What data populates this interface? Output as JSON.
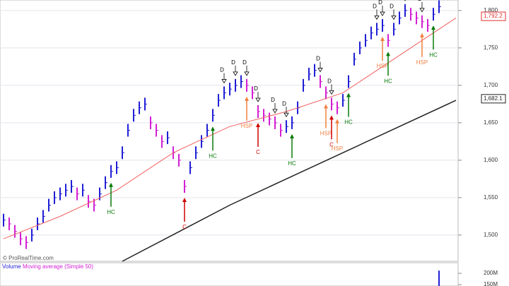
{
  "chart_data": {
    "type": "bar-chart",
    "watermark": "© ProRealTime.com",
    "xlim": [
      0,
      80
    ],
    "ylim": [
      1465,
      1814
    ],
    "yticks": [
      {
        "value": 1500,
        "label": "1,500"
      },
      {
        "value": 1550,
        "label": "1,550"
      },
      {
        "value": 1600,
        "label": "1,600"
      },
      {
        "value": 1650,
        "label": "1,650"
      },
      {
        "value": 1700,
        "label": "1,700"
      },
      {
        "value": 1750,
        "label": "1,750"
      },
      {
        "value": 1800,
        "label": "1,800"
      }
    ],
    "grid": true,
    "up_color": "#1f1fd6",
    "down_color": "#d31fd3",
    "values": [
      1520,
      1515,
      1505,
      1495,
      1490,
      1500,
      1515,
      1525,
      1540,
      1550,
      1555,
      1560,
      1565,
      1555,
      1560,
      1545,
      1540,
      1555,
      1570,
      1585,
      1590,
      1610,
      1640,
      1660,
      1670,
      1675,
      1650,
      1640,
      1625,
      1630,
      1610,
      1600,
      1565,
      1590,
      1610,
      1625,
      1640,
      1660,
      1680,
      1690,
      1695,
      1700,
      1705,
      1700,
      1690,
      1665,
      1660,
      1655,
      1650,
      1640,
      1645,
      1650,
      1670,
      1700,
      1715,
      1720,
      1705,
      1690,
      1675,
      1670,
      1680,
      1705,
      1735,
      1750,
      1760,
      1770,
      1775,
      1780,
      1760,
      1775,
      1790,
      1800,
      1795,
      1790,
      1785,
      1780,
      1795,
      1805
    ],
    "series": [
      {
        "color": "#f06060",
        "x": [
          0,
          10,
          20,
          30,
          40,
          50,
          60,
          70,
          80
        ],
        "values": [
          1495,
          1525,
          1560,
          1610,
          1645,
          1665,
          1690,
          1740,
          1790
        ]
      },
      {
        "color": "#222222",
        "x": [
          21,
          40,
          60,
          80
        ],
        "values": [
          1465,
          1540,
          1610,
          1680
        ]
      }
    ],
    "price_labels": [
      {
        "value": 1792.2,
        "label": "1,792.2",
        "color": "#e03030"
      },
      {
        "value": 1682.1,
        "label": "1,682.1",
        "color": "#222222"
      }
    ],
    "signals": [
      {
        "x": 19,
        "label": "HC",
        "color": "#0a7a0a"
      },
      {
        "x": 32,
        "label": "C",
        "color": "#d00000"
      },
      {
        "x": 37,
        "label": "HC",
        "color": "#0a7a0a"
      },
      {
        "x": 43,
        "label": "HSP",
        "color": "#f08040"
      },
      {
        "x": 45,
        "label": "C",
        "color": "#d00000"
      },
      {
        "x": 51,
        "label": "HC",
        "color": "#0a7a0a"
      },
      {
        "x": 57,
        "label": "HSP",
        "color": "#f08040"
      },
      {
        "x": 58,
        "label": "C",
        "color": "#d00000"
      },
      {
        "x": 59,
        "label": "HSP",
        "color": "#f08040"
      },
      {
        "x": 61,
        "label": "HC",
        "color": "#0a7a0a"
      },
      {
        "x": 67,
        "label": "HSP",
        "color": "#f08040"
      },
      {
        "x": 68,
        "label": "HC",
        "color": "#0a7a0a"
      },
      {
        "x": 74,
        "label": "HSP",
        "color": "#f08040"
      },
      {
        "x": 76,
        "label": "HC",
        "color": "#0a7a0a"
      }
    ],
    "markers": [
      {
        "x": 39,
        "label": "D"
      },
      {
        "x": 41,
        "label": "D"
      },
      {
        "x": 43,
        "label": "D"
      },
      {
        "x": 45,
        "label": "D"
      },
      {
        "x": 48,
        "label": "D"
      },
      {
        "x": 50,
        "label": "D"
      },
      {
        "x": 56,
        "label": "D"
      },
      {
        "x": 58,
        "label": "D"
      },
      {
        "x": 66,
        "label": "D"
      },
      {
        "x": 67,
        "label": "D"
      },
      {
        "x": 69,
        "label": "D"
      },
      {
        "x": 71,
        "label": "D"
      },
      {
        "x": 74,
        "label": "D"
      }
    ],
    "volume": {
      "label": "Volume",
      "ma_label": "Moving average (Simple 50)",
      "ylim": [
        144000000,
        247000000
      ],
      "yticks": [
        {
          "value": 150000000,
          "label": "150M"
        },
        {
          "value": 200000000,
          "label": "200M"
        }
      ],
      "x": [
        77
      ],
      "values": [
        212000000
      ],
      "color": "#1f1fd6"
    }
  }
}
